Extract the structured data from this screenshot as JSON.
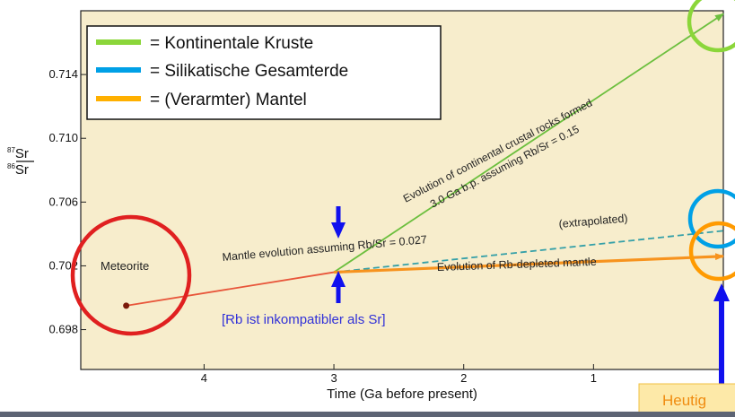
{
  "chart_data": {
    "type": "line",
    "title": "",
    "xlabel": "Time (Ga before present)",
    "ylabel_top": "87Sr",
    "ylabel_bottom": "86Sr",
    "ylabel_sup_top": "87",
    "ylabel_base_top": "Sr",
    "ylabel_sup_bottom": "86",
    "ylabel_base_bottom": "Sr",
    "xlim": [
      4.95,
      0
    ],
    "x_reversed": true,
    "ylim": [
      0.6955,
      0.718
    ],
    "xticks": [
      4,
      3,
      2,
      1
    ],
    "xtick_labels": [
      "4",
      "3",
      "2",
      "1"
    ],
    "yticks": [
      0.698,
      0.702,
      0.706,
      0.71,
      0.714
    ],
    "ytick_labels": [
      "0.698",
      "0.702",
      "0.706",
      "0.710",
      "0.714"
    ],
    "grid": false,
    "background": "#f7edcc",
    "series": [
      {
        "key": "meteorite_to_mantle",
        "color": "#e8553a",
        "x": [
          4.6,
          3.0
        ],
        "y": [
          0.6995,
          0.7016
        ],
        "arrow": false
      },
      {
        "key": "continental",
        "color": "#6cbf3e",
        "x": [
          3.0,
          0.0
        ],
        "y": [
          0.7016,
          0.7178
        ],
        "arrow": true
      },
      {
        "key": "extrapolated",
        "color": "#35a0a8",
        "dashed": true,
        "x": [
          3.0,
          0.0
        ],
        "y": [
          0.7016,
          0.7042
        ],
        "arrow": false
      },
      {
        "key": "depleted_mantle",
        "color": "#f7931e",
        "x": [
          3.0,
          0.0
        ],
        "y": [
          0.7016,
          0.7026
        ],
        "arrow": true
      }
    ],
    "points": [
      {
        "key": "meteorite",
        "x": 4.6,
        "y": 0.6995,
        "label": "Meteorite"
      }
    ],
    "annotations": {
      "continental_line1": "Evolution of continental crustal rocks formed",
      "continental_line2": "3.0 Ga b.p. assuming Rb/Sr = 0.15",
      "mantle": "Mantle evolution assuming Rb/Sr = 0.027",
      "extrapolated": "(extrapolated)",
      "depleted": "Evolution of Rb-depleted mantle",
      "rb_note": "[Rb ist inkompatibler als Sr]",
      "today": "Heutig"
    },
    "legend": {
      "placement": "top-left",
      "entries": [
        {
          "label": "= Kontinentale Kruste",
          "color": "#8bd63a"
        },
        {
          "label": "= Silikatische Gesamterde",
          "color": "#00a0e6"
        },
        {
          "label": "= (Verarmter) Mantel",
          "color": "#ffb000"
        }
      ]
    },
    "highlight_circles": [
      {
        "key": "meteorite",
        "color": "#e02020"
      },
      {
        "key": "continental",
        "color": "#8bd63a"
      },
      {
        "key": "bulk_earth",
        "color": "#00a0e6"
      },
      {
        "key": "mantle",
        "color": "#ff9a00"
      }
    ],
    "colors": {
      "arrow_marker": "#1010ee",
      "note_text": "#3030d8",
      "today_box_fill": "#fde9a8",
      "today_box_border": "#f0c040",
      "today_text": "#f08c10"
    }
  }
}
